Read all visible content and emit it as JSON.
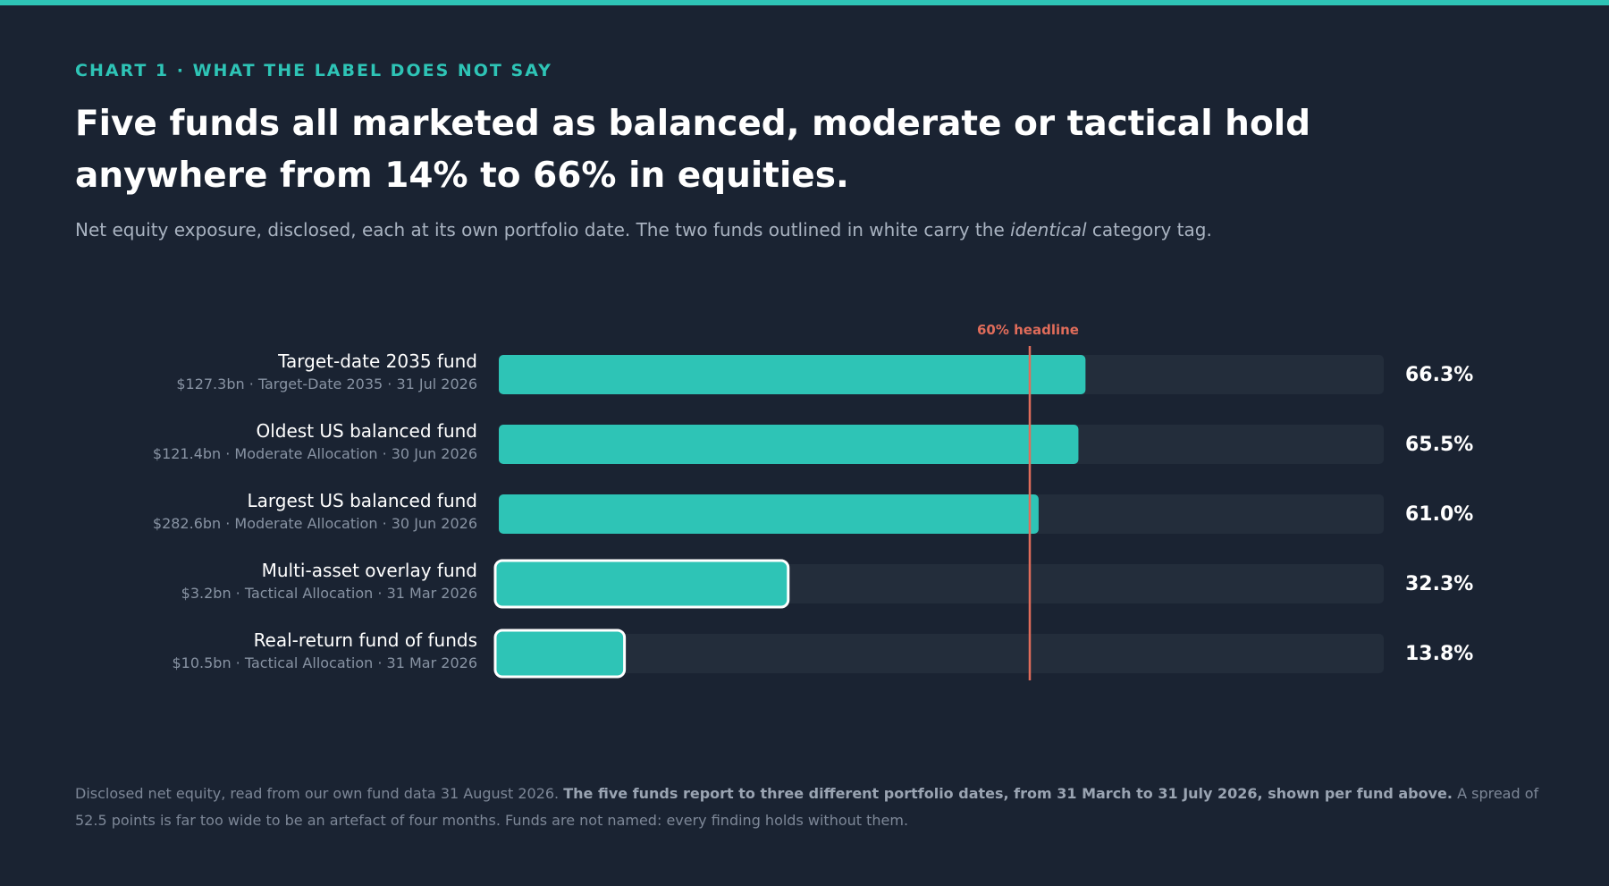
{
  "header": {
    "eyebrow": "CHART 1 · WHAT THE LABEL DOES NOT SAY",
    "title": "Five funds all marketed as balanced, moderate or tactical hold anywhere from 14% to 66% in equities.",
    "subtitle_before": "Net equity exposure, disclosed, each at its own portfolio date. The two funds outlined in white carry the ",
    "subtitle_em": "identical",
    "subtitle_after": " category tag."
  },
  "chart_data": {
    "type": "bar",
    "orientation": "horizontal",
    "xlim": [
      0,
      100
    ],
    "unit": "%",
    "reference_line": {
      "value": 60,
      "label": "60% headline",
      "color": "#e06c5a"
    },
    "categories": [
      "Target-date 2035 fund",
      "Oldest US balanced fund",
      "Largest US balanced fund",
      "Multi-asset overlay fund",
      "Real-return fund of funds"
    ],
    "sublabels": [
      "$127.3bn · Target-Date 2035 · 31 Jul 2026",
      "$121.4bn · Moderate Allocation · 30 Jun 2026",
      "$282.6bn · Moderate Allocation · 30 Jun 2026",
      "$3.2bn · Tactical Allocation · 31 Mar 2026",
      "$10.5bn · Tactical Allocation · 31 Mar 2026"
    ],
    "values": [
      66.3,
      65.5,
      61.0,
      32.3,
      13.8
    ],
    "value_labels": [
      "66.3%",
      "65.5%",
      "61.0%",
      "32.3%",
      "13.8%"
    ],
    "outlined": [
      false,
      false,
      false,
      true,
      true
    ],
    "colors": {
      "bar": "#2ec4b6",
      "track": "#232d3b",
      "outline": "#ffffff"
    }
  },
  "footer": {
    "text_before": "Disclosed net equity, read from our own fund data 31 August 2026. ",
    "text_bold": "The five funds report to three different portfolio dates, from 31 March to 31 July 2026, shown per fund above.",
    "text_after": " A spread of 52.5 points is far too wide to be an artefact of four months. Funds are not named: every finding holds without them."
  }
}
